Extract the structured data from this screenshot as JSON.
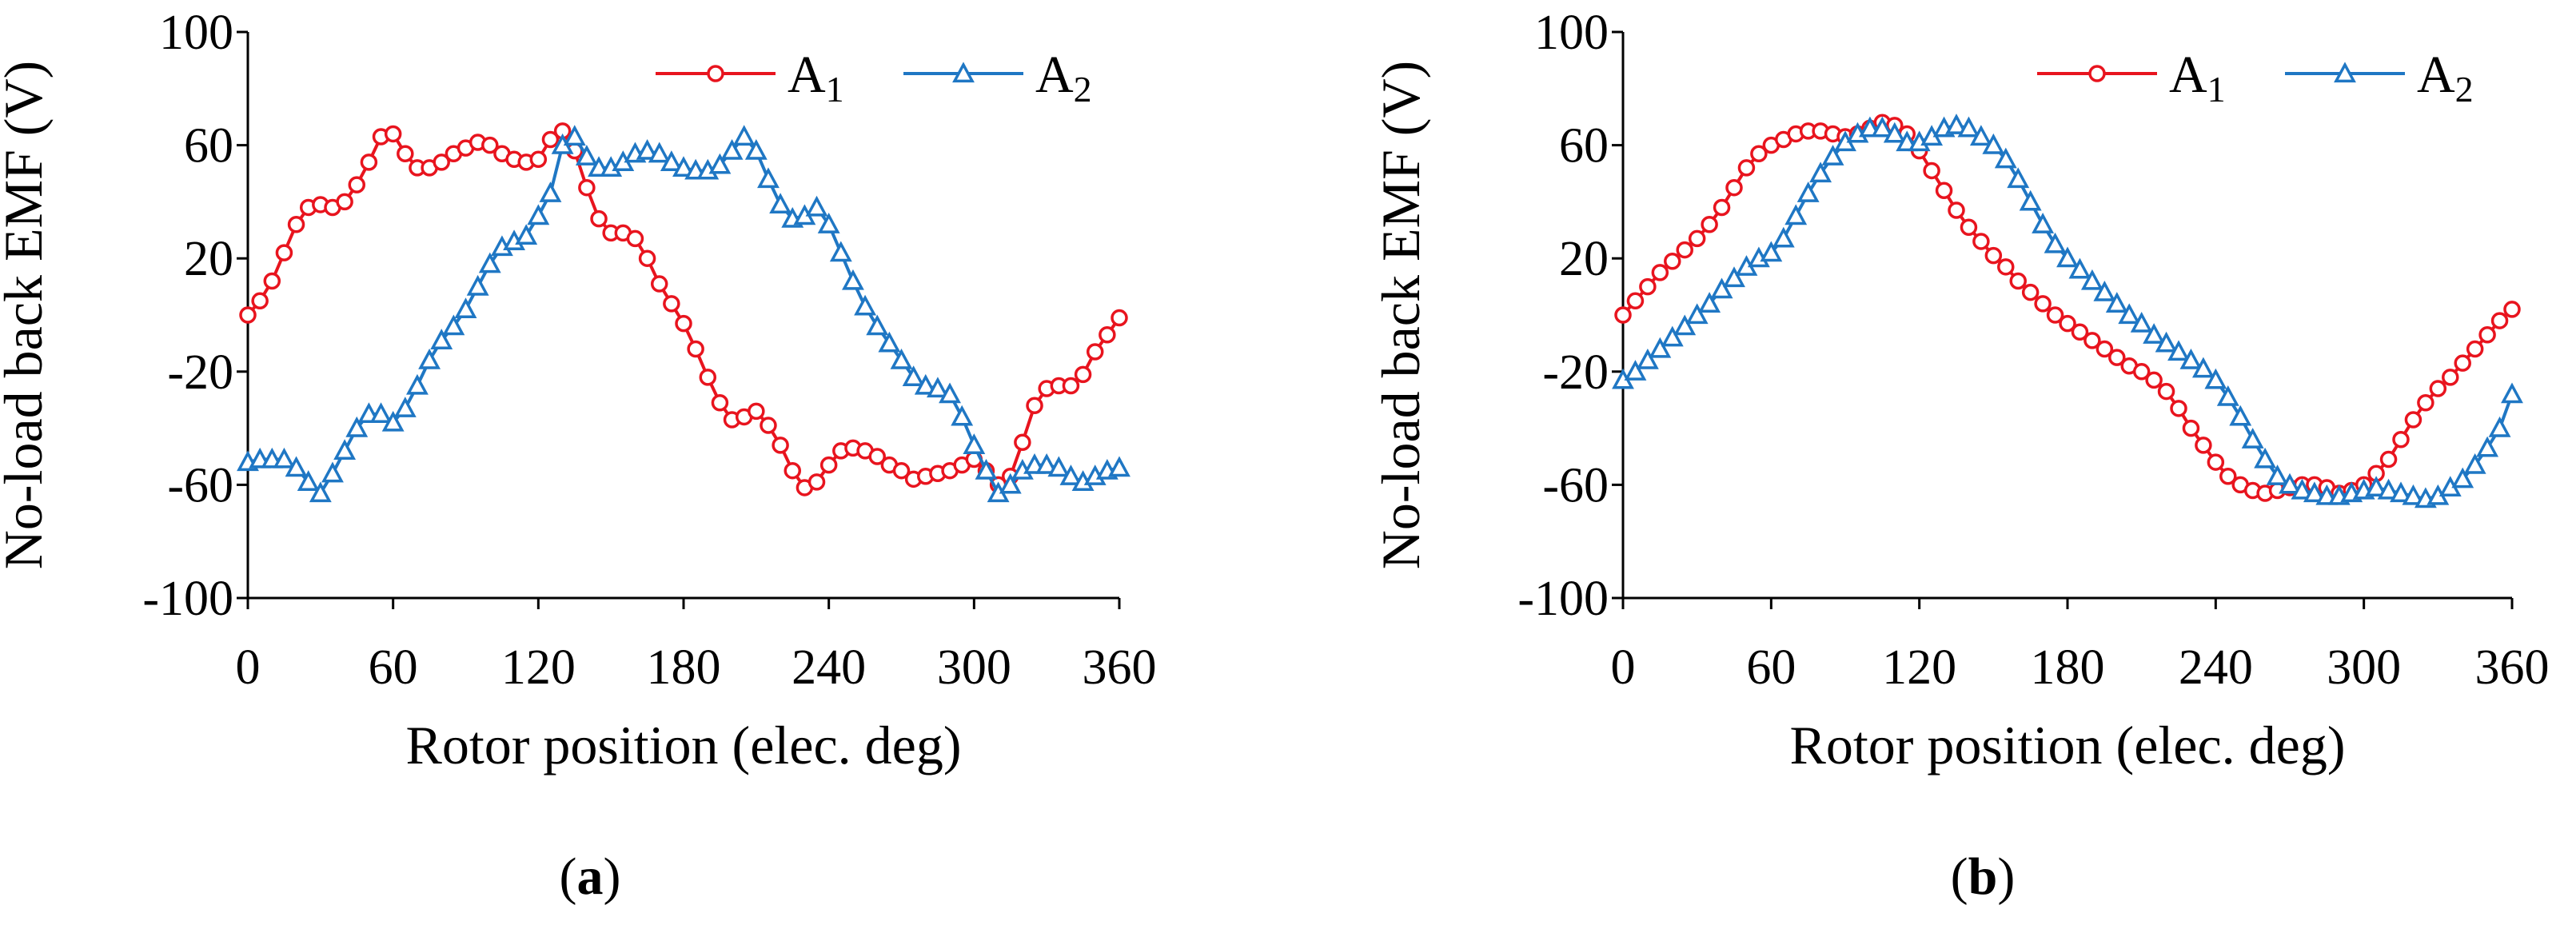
{
  "figure": {
    "panels": [
      {
        "label_open": "(",
        "label_letter": "a",
        "label_close": ")"
      },
      {
        "label_open": "(",
        "label_letter": "b",
        "label_close": ")"
      }
    ]
  },
  "chart_data": [
    {
      "type": "line",
      "panel": "a",
      "xlabel": "Rotor position (elec. deg)",
      "ylabel": "No-load back EMF (V)",
      "xlim": [
        0,
        360
      ],
      "ylim": [
        -100,
        100
      ],
      "xticks": [
        0,
        60,
        120,
        180,
        240,
        300,
        360
      ],
      "yticks": [
        -100,
        -60,
        -20,
        20,
        60,
        100
      ],
      "grid": false,
      "legend_position": "top-right",
      "series": [
        {
          "name": "A",
          "subscript": "1",
          "color": "#e8141e",
          "marker": "circle",
          "x": [
            0,
            5,
            10,
            15,
            20,
            25,
            30,
            35,
            40,
            45,
            50,
            55,
            60,
            65,
            70,
            75,
            80,
            85,
            90,
            95,
            100,
            105,
            110,
            115,
            120,
            125,
            130,
            135,
            140,
            145,
            150,
            155,
            160,
            165,
            170,
            175,
            180,
            185,
            190,
            195,
            200,
            205,
            210,
            215,
            220,
            225,
            230,
            235,
            240,
            245,
            250,
            255,
            260,
            265,
            270,
            275,
            280,
            285,
            290,
            295,
            300,
            305,
            310,
            315,
            320,
            325,
            330,
            335,
            340,
            345,
            350,
            355,
            360
          ],
          "values": [
            0,
            5,
            12,
            22,
            32,
            38,
            39,
            38,
            40,
            46,
            54,
            63,
            64,
            57,
            52,
            52,
            54,
            57,
            59,
            61,
            60,
            57,
            55,
            54,
            55,
            62,
            65,
            58,
            45,
            34,
            29,
            29,
            27,
            20,
            11,
            4,
            -3,
            -12,
            -22,
            -31,
            -37,
            -36,
            -34,
            -39,
            -46,
            -55,
            -61,
            -59,
            -53,
            -48,
            -47,
            -48,
            -50,
            -53,
            -55,
            -58,
            -57,
            -56,
            -55,
            -53,
            -51,
            -55,
            -60,
            -57,
            -45,
            -32,
            -26,
            -25,
            -25,
            -21,
            -13,
            -7,
            -1
          ]
        },
        {
          "name": "A",
          "subscript": "2",
          "color": "#1f77c4",
          "marker": "triangle",
          "x": [
            0,
            5,
            10,
            15,
            20,
            25,
            30,
            35,
            40,
            45,
            50,
            55,
            60,
            65,
            70,
            75,
            80,
            85,
            90,
            95,
            100,
            105,
            110,
            115,
            120,
            125,
            130,
            135,
            140,
            145,
            150,
            155,
            160,
            165,
            170,
            175,
            180,
            185,
            190,
            195,
            200,
            205,
            210,
            215,
            220,
            225,
            230,
            235,
            240,
            245,
            250,
            255,
            260,
            265,
            270,
            275,
            280,
            285,
            290,
            295,
            300,
            305,
            310,
            315,
            320,
            325,
            330,
            335,
            340,
            345,
            350,
            355,
            360
          ],
          "values": [
            -52,
            -51,
            -51,
            -51,
            -54,
            -59,
            -63,
            -56,
            -48,
            -40,
            -35,
            -35,
            -38,
            -33,
            -25,
            -16,
            -9,
            -4,
            2,
            10,
            18,
            24,
            26,
            28,
            35,
            43,
            60,
            63,
            56,
            52,
            52,
            54,
            57,
            58,
            57,
            54,
            52,
            51,
            51,
            53,
            58,
            63,
            58,
            48,
            39,
            34,
            35,
            38,
            32,
            22,
            12,
            3,
            -4,
            -10,
            -16,
            -22,
            -25,
            -26,
            -28,
            -36,
            -46,
            -55,
            -63,
            -60,
            -55,
            -53,
            -53,
            -54,
            -57,
            -59,
            -57,
            -55,
            -54
          ]
        }
      ]
    },
    {
      "type": "line",
      "panel": "b",
      "xlabel": "Rotor position (elec. deg)",
      "ylabel": "No-load back EMF (V)",
      "xlim": [
        0,
        360
      ],
      "ylim": [
        -100,
        100
      ],
      "xticks": [
        0,
        60,
        120,
        180,
        240,
        300,
        360
      ],
      "yticks": [
        -100,
        -60,
        -20,
        20,
        60,
        100
      ],
      "grid": false,
      "legend_position": "top-right",
      "series": [
        {
          "name": "A",
          "subscript": "1",
          "color": "#e8141e",
          "marker": "circle",
          "x": [
            0,
            5,
            10,
            15,
            20,
            25,
            30,
            35,
            40,
            45,
            50,
            55,
            60,
            65,
            70,
            75,
            80,
            85,
            90,
            95,
            100,
            105,
            110,
            115,
            120,
            125,
            130,
            135,
            140,
            145,
            150,
            155,
            160,
            165,
            170,
            175,
            180,
            185,
            190,
            195,
            200,
            205,
            210,
            215,
            220,
            225,
            230,
            235,
            240,
            245,
            250,
            255,
            260,
            265,
            270,
            275,
            280,
            285,
            290,
            295,
            300,
            305,
            310,
            315,
            320,
            325,
            330,
            335,
            340,
            345,
            350,
            355,
            360
          ],
          "values": [
            0,
            5,
            10,
            15,
            19,
            23,
            27,
            32,
            38,
            45,
            52,
            57,
            60,
            62,
            64,
            65,
            65,
            64,
            63,
            64,
            66,
            68,
            67,
            64,
            58,
            51,
            44,
            37,
            31,
            26,
            21,
            17,
            12,
            8,
            4,
            0,
            -3,
            -6,
            -9,
            -12,
            -15,
            -18,
            -20,
            -23,
            -27,
            -33,
            -40,
            -46,
            -52,
            -57,
            -60,
            -62,
            -63,
            -62,
            -61,
            -60,
            -60,
            -61,
            -63,
            -62,
            -60,
            -56,
            -51,
            -44,
            -37,
            -31,
            -26,
            -22,
            -17,
            -12,
            -7,
            -2,
            2
          ]
        },
        {
          "name": "A",
          "subscript": "2",
          "color": "#1f77c4",
          "marker": "triangle",
          "x": [
            0,
            5,
            10,
            15,
            20,
            25,
            30,
            35,
            40,
            45,
            50,
            55,
            60,
            65,
            70,
            75,
            80,
            85,
            90,
            95,
            100,
            105,
            110,
            115,
            120,
            125,
            130,
            135,
            140,
            145,
            150,
            155,
            160,
            165,
            170,
            175,
            180,
            185,
            190,
            195,
            200,
            205,
            210,
            215,
            220,
            225,
            230,
            235,
            240,
            245,
            250,
            255,
            260,
            265,
            270,
            275,
            280,
            285,
            290,
            295,
            300,
            305,
            310,
            315,
            320,
            325,
            330,
            335,
            340,
            345,
            350,
            355,
            360
          ],
          "values": [
            -23,
            -20,
            -16,
            -12,
            -8,
            -4,
            0,
            4,
            9,
            13,
            17,
            20,
            22,
            27,
            35,
            43,
            50,
            56,
            61,
            64,
            66,
            66,
            64,
            61,
            61,
            63,
            66,
            67,
            66,
            63,
            60,
            55,
            48,
            40,
            32,
            25,
            20,
            16,
            12,
            8,
            4,
            0,
            -3,
            -7,
            -10,
            -13,
            -16,
            -19,
            -23,
            -29,
            -36,
            -44,
            -51,
            -57,
            -60,
            -62,
            -63,
            -64,
            -64,
            -63,
            -62,
            -61,
            -62,
            -63,
            -64,
            -65,
            -64,
            -61,
            -58,
            -53,
            -47,
            -40,
            -28
          ]
        }
      ]
    }
  ]
}
